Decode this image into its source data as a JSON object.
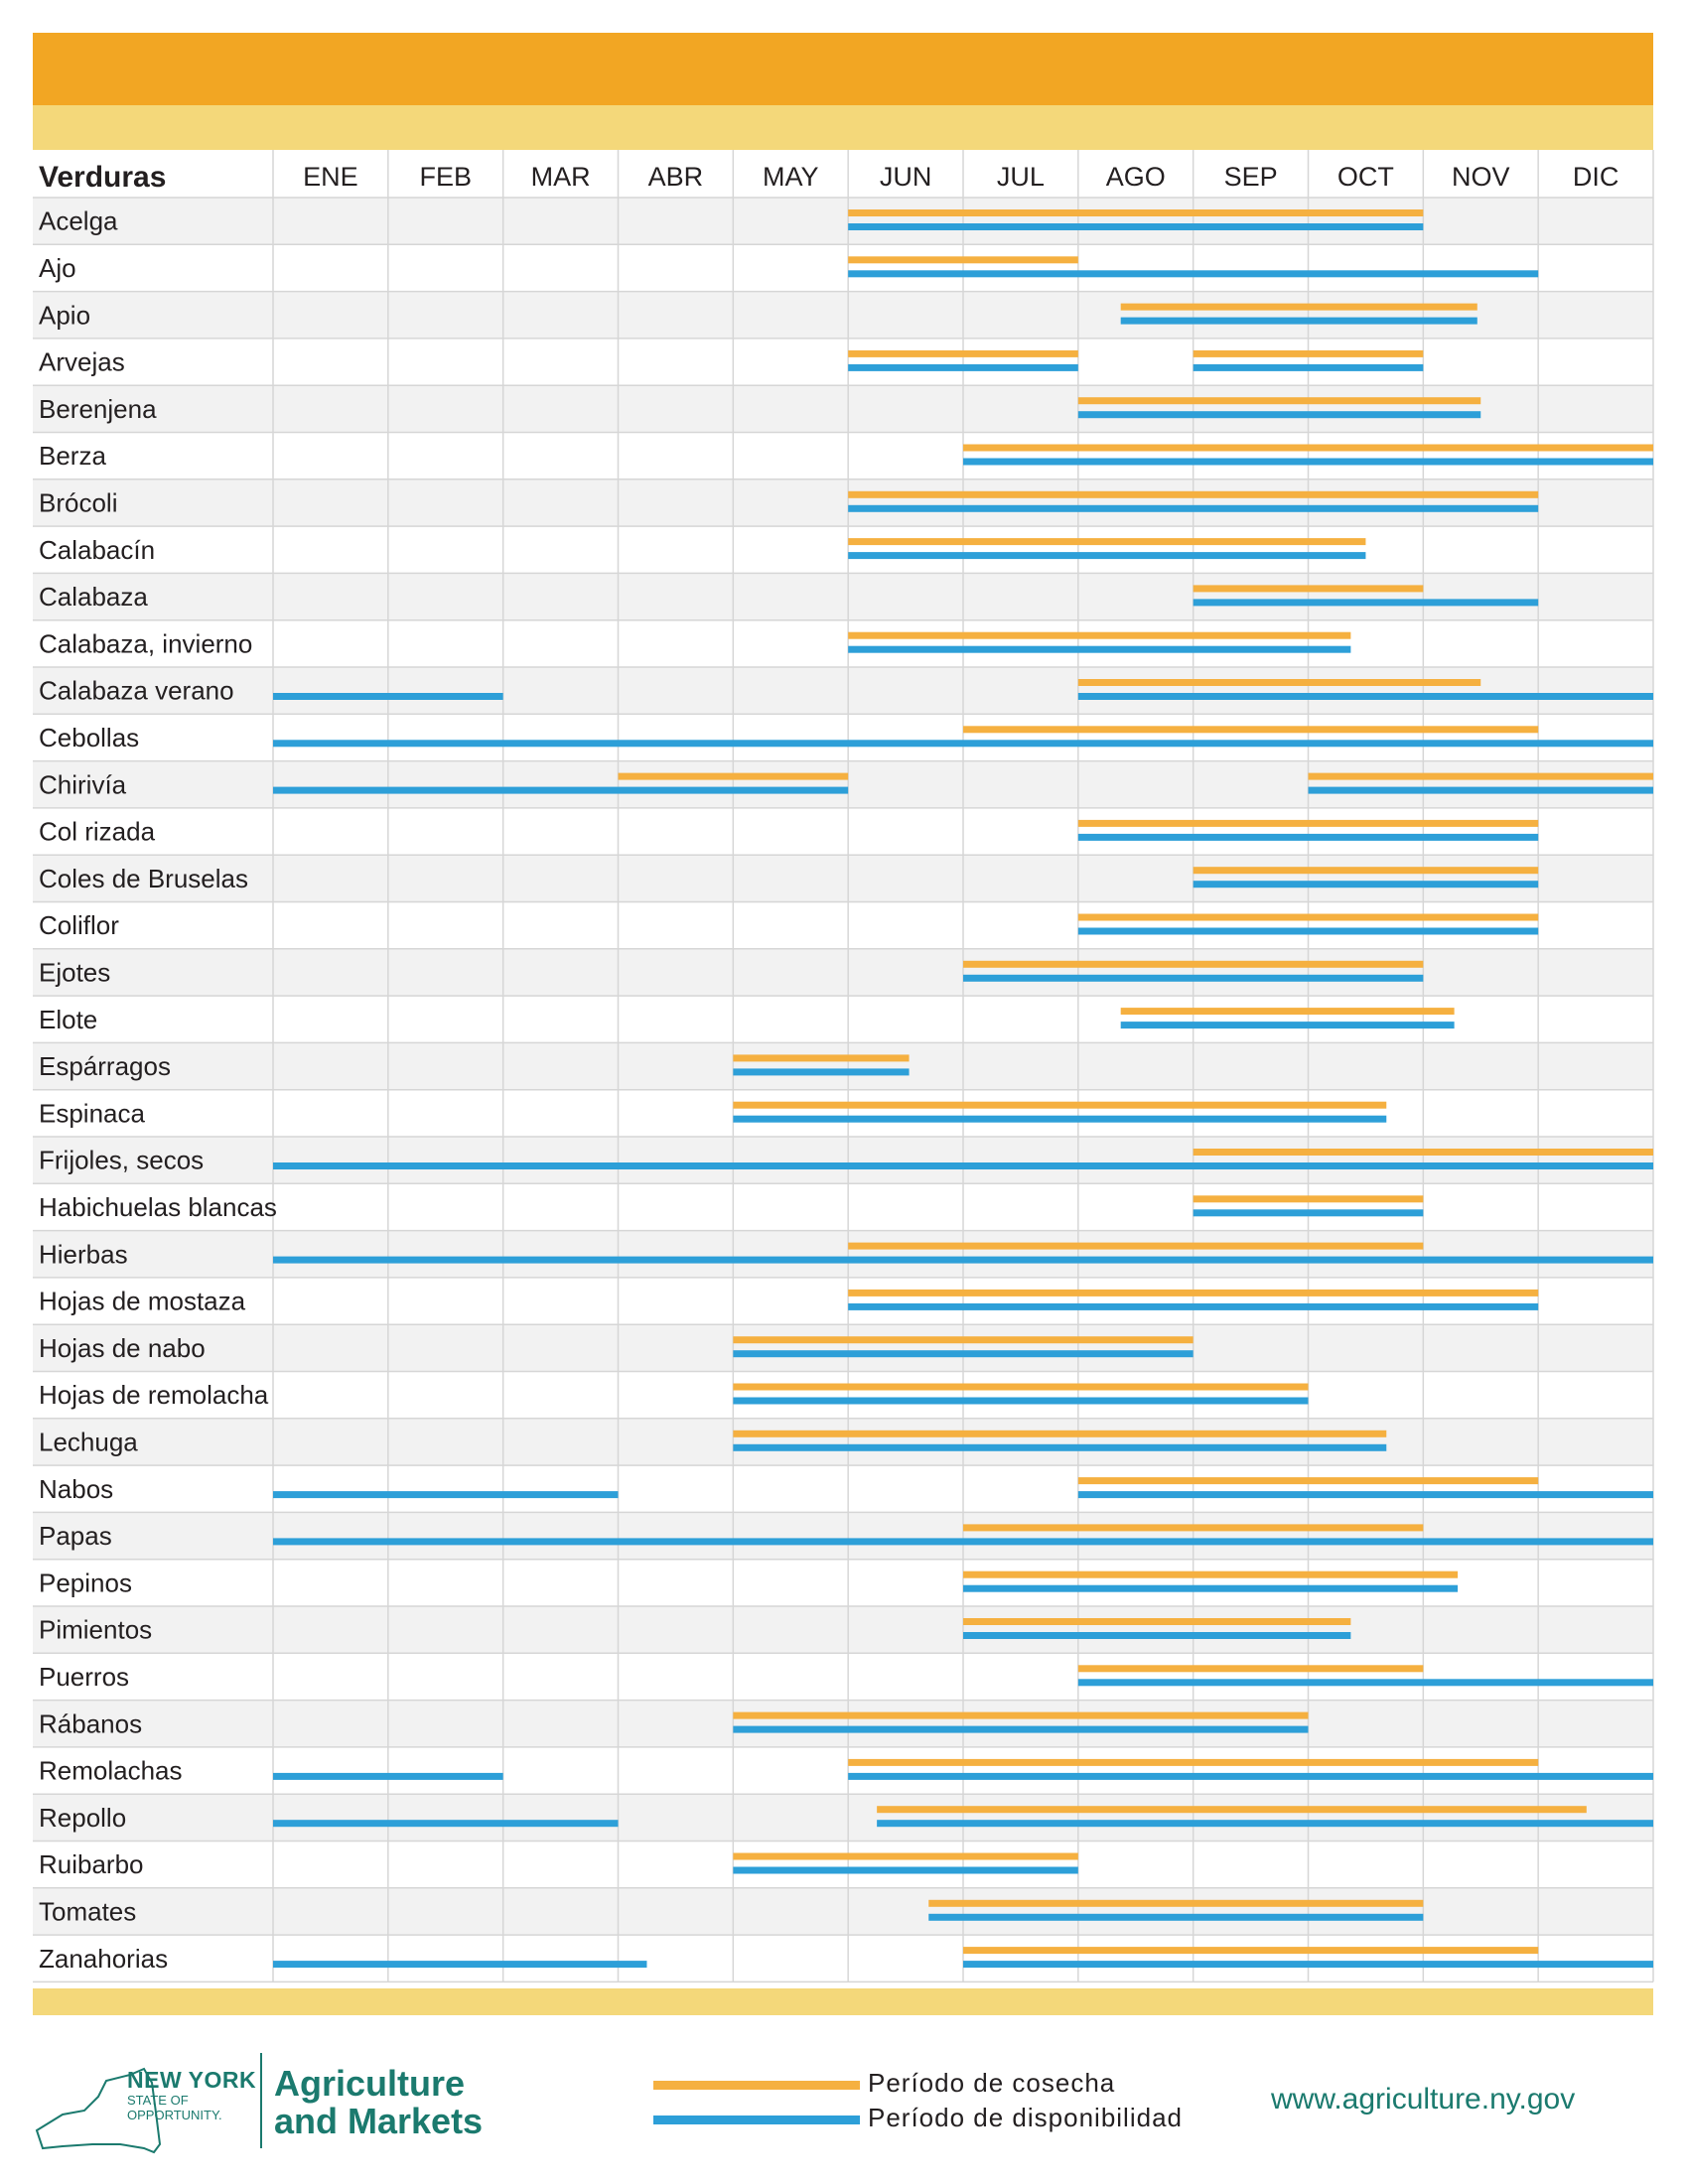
{
  "chart_data": {
    "type": "gantt",
    "title_column": "Verduras",
    "months": [
      "ENE",
      "FEB",
      "MAR",
      "ABR",
      "MAY",
      "JUN",
      "JUL",
      "AGO",
      "SEP",
      "OCT",
      "NOV",
      "DIC"
    ],
    "units": "months (0 = start of ENE, 12 = end of DIC)",
    "colors": {
      "harvest": "#f5b040",
      "availability": "#2d9fd8",
      "row_alt": "#f2f2f2",
      "grid": "#d6d6d6"
    },
    "series_names": {
      "harvest": "Período de cosecha",
      "availability": "Período de disponibilidad"
    },
    "rows": [
      {
        "name": "Acelga",
        "harvest": [
          [
            5,
            10
          ]
        ],
        "avail": [
          [
            5,
            10
          ]
        ]
      },
      {
        "name": "Ajo",
        "harvest": [
          [
            5,
            7
          ]
        ],
        "avail": [
          [
            5,
            11
          ]
        ]
      },
      {
        "name": "Apio",
        "harvest": [
          [
            7.37,
            10.47
          ]
        ],
        "avail": [
          [
            7.37,
            10.47
          ]
        ]
      },
      {
        "name": "Arvejas",
        "harvest": [
          [
            5,
            7
          ],
          [
            8,
            10
          ]
        ],
        "avail": [
          [
            5,
            7
          ],
          [
            8,
            10
          ]
        ]
      },
      {
        "name": "Berenjena",
        "harvest": [
          [
            7,
            10.5
          ]
        ],
        "avail": [
          [
            7,
            10.5
          ]
        ]
      },
      {
        "name": "Berza",
        "harvest": [
          [
            6,
            12
          ]
        ],
        "avail": [
          [
            6,
            12
          ]
        ]
      },
      {
        "name": "Brócoli",
        "harvest": [
          [
            5,
            11
          ]
        ],
        "avail": [
          [
            5,
            11
          ]
        ]
      },
      {
        "name": "Calabacín",
        "harvest": [
          [
            5,
            9.5
          ]
        ],
        "avail": [
          [
            5,
            9.5
          ]
        ]
      },
      {
        "name": "Calabaza",
        "harvest": [
          [
            8,
            10
          ]
        ],
        "avail": [
          [
            8,
            11
          ]
        ]
      },
      {
        "name": "Calabaza, invierno",
        "harvest": [
          [
            5,
            9.37
          ]
        ],
        "avail": [
          [
            5,
            9.37
          ]
        ]
      },
      {
        "name": "Calabaza verano",
        "harvest": [
          [
            7,
            10.5
          ]
        ],
        "avail": [
          [
            0,
            2
          ],
          [
            7,
            12
          ]
        ]
      },
      {
        "name": "Cebollas",
        "harvest": [
          [
            6,
            11
          ]
        ],
        "avail": [
          [
            0,
            12
          ]
        ]
      },
      {
        "name": "Chirivía",
        "harvest": [
          [
            3,
            5
          ],
          [
            9,
            12
          ]
        ],
        "avail": [
          [
            0,
            5
          ],
          [
            9,
            12
          ]
        ]
      },
      {
        "name": "Col rizada",
        "harvest": [
          [
            7,
            11
          ]
        ],
        "avail": [
          [
            7,
            11
          ]
        ]
      },
      {
        "name": "Coles de Bruselas",
        "harvest": [
          [
            8,
            11
          ]
        ],
        "avail": [
          [
            8,
            11
          ]
        ]
      },
      {
        "name": "Coliflor",
        "harvest": [
          [
            7,
            11
          ]
        ],
        "avail": [
          [
            7,
            11
          ]
        ]
      },
      {
        "name": "Ejotes",
        "harvest": [
          [
            6,
            10
          ]
        ],
        "avail": [
          [
            6,
            10
          ]
        ]
      },
      {
        "name": "Elote",
        "harvest": [
          [
            7.37,
            10.27
          ]
        ],
        "avail": [
          [
            7.37,
            10.27
          ]
        ]
      },
      {
        "name": "Espárragos",
        "harvest": [
          [
            4,
            5.53
          ]
        ],
        "avail": [
          [
            4,
            5.53
          ]
        ]
      },
      {
        "name": "Espinaca",
        "harvest": [
          [
            4,
            9.68
          ]
        ],
        "avail": [
          [
            4,
            9.68
          ]
        ]
      },
      {
        "name": "Frijoles, secos",
        "harvest": [
          [
            8,
            12
          ]
        ],
        "avail": [
          [
            0,
            12
          ]
        ]
      },
      {
        "name": "Habichuelas blancas",
        "harvest": [
          [
            8,
            10
          ]
        ],
        "avail": [
          [
            8,
            10
          ]
        ]
      },
      {
        "name": "Hierbas",
        "harvest": [
          [
            5,
            10
          ]
        ],
        "avail": [
          [
            0,
            12
          ]
        ]
      },
      {
        "name": "Hojas de mostaza",
        "harvest": [
          [
            5,
            11
          ]
        ],
        "avail": [
          [
            5,
            11
          ]
        ]
      },
      {
        "name": "Hojas de nabo",
        "harvest": [
          [
            4,
            8
          ]
        ],
        "avail": [
          [
            4,
            8
          ]
        ]
      },
      {
        "name": "Hojas de remolacha",
        "harvest": [
          [
            4,
            9
          ]
        ],
        "avail": [
          [
            4,
            9
          ]
        ]
      },
      {
        "name": "Lechuga",
        "harvest": [
          [
            4,
            9.68
          ]
        ],
        "avail": [
          [
            4,
            9.68
          ]
        ]
      },
      {
        "name": "Nabos",
        "harvest": [
          [
            7,
            11
          ]
        ],
        "avail": [
          [
            0,
            3
          ],
          [
            7,
            12
          ]
        ]
      },
      {
        "name": "Papas",
        "harvest": [
          [
            6,
            10
          ]
        ],
        "avail": [
          [
            0,
            12
          ]
        ]
      },
      {
        "name": "Pepinos",
        "harvest": [
          [
            6,
            10.3
          ]
        ],
        "avail": [
          [
            6,
            10.3
          ]
        ]
      },
      {
        "name": "Pimientos",
        "harvest": [
          [
            6,
            9.37
          ]
        ],
        "avail": [
          [
            6,
            9.37
          ]
        ]
      },
      {
        "name": "Puerros",
        "harvest": [
          [
            7,
            10
          ]
        ],
        "avail": [
          [
            7,
            12
          ]
        ]
      },
      {
        "name": "Rábanos",
        "harvest": [
          [
            4,
            9
          ]
        ],
        "avail": [
          [
            4,
            9
          ]
        ]
      },
      {
        "name": "Remolachas",
        "harvest": [
          [
            5,
            11
          ]
        ],
        "avail": [
          [
            0,
            2
          ],
          [
            5,
            12
          ]
        ]
      },
      {
        "name": "Repollo",
        "harvest": [
          [
            5.25,
            11.42
          ]
        ],
        "avail": [
          [
            0,
            3
          ],
          [
            5.25,
            12
          ]
        ]
      },
      {
        "name": "Ruibarbo",
        "harvest": [
          [
            4,
            7
          ]
        ],
        "avail": [
          [
            4,
            7
          ]
        ]
      },
      {
        "name": "Tomates",
        "harvest": [
          [
            5.7,
            10
          ]
        ],
        "avail": [
          [
            5.7,
            10
          ]
        ]
      },
      {
        "name": "Zanahorias",
        "harvest": [
          [
            6,
            11
          ]
        ],
        "avail": [
          [
            0,
            3.25
          ],
          [
            6,
            12
          ]
        ]
      }
    ]
  },
  "footer": {
    "logo_line1": "NEW YORK",
    "logo_line2": "STATE OF",
    "logo_line3": "OPPORTUNITY.",
    "agency_line1": "Agriculture",
    "agency_line2": "and Markets",
    "legend_harvest": "Período de cosecha",
    "legend_availability": "Período de disponibilidad",
    "website": "www.agriculture.ny.gov"
  }
}
